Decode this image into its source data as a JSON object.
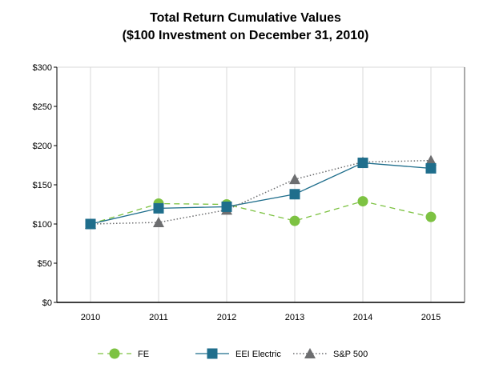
{
  "chart_data": {
    "type": "line",
    "title": "Total Return Cumulative Values",
    "subtitle": "($100 Investment on December 31, 2010)",
    "xlabel": "",
    "ylabel": "",
    "categories": [
      "2010",
      "2011",
      "2012",
      "2013",
      "2014",
      "2015"
    ],
    "ylim": [
      0,
      300
    ],
    "yticks": [
      0,
      50,
      100,
      150,
      200,
      250,
      300
    ],
    "ytick_labels": [
      "$0",
      "$50",
      "$100",
      "$150",
      "$200",
      "$250",
      "$300"
    ],
    "grid": "vertical",
    "legend_position": "bottom",
    "series": [
      {
        "name": "FE",
        "values": [
          100,
          126,
          125,
          104,
          129,
          109
        ],
        "color": "#7dc242",
        "line_style": "dashed",
        "marker": "circle"
      },
      {
        "name": "EEI Electric",
        "values": [
          100,
          120,
          122,
          138,
          178,
          171
        ],
        "color": "#1f6e8c",
        "line_style": "solid",
        "marker": "square"
      },
      {
        "name": "S&P 500",
        "values": [
          100,
          102,
          118,
          157,
          179,
          181
        ],
        "color": "#6d6e70",
        "line_style": "dotted",
        "marker": "triangle"
      }
    ]
  }
}
